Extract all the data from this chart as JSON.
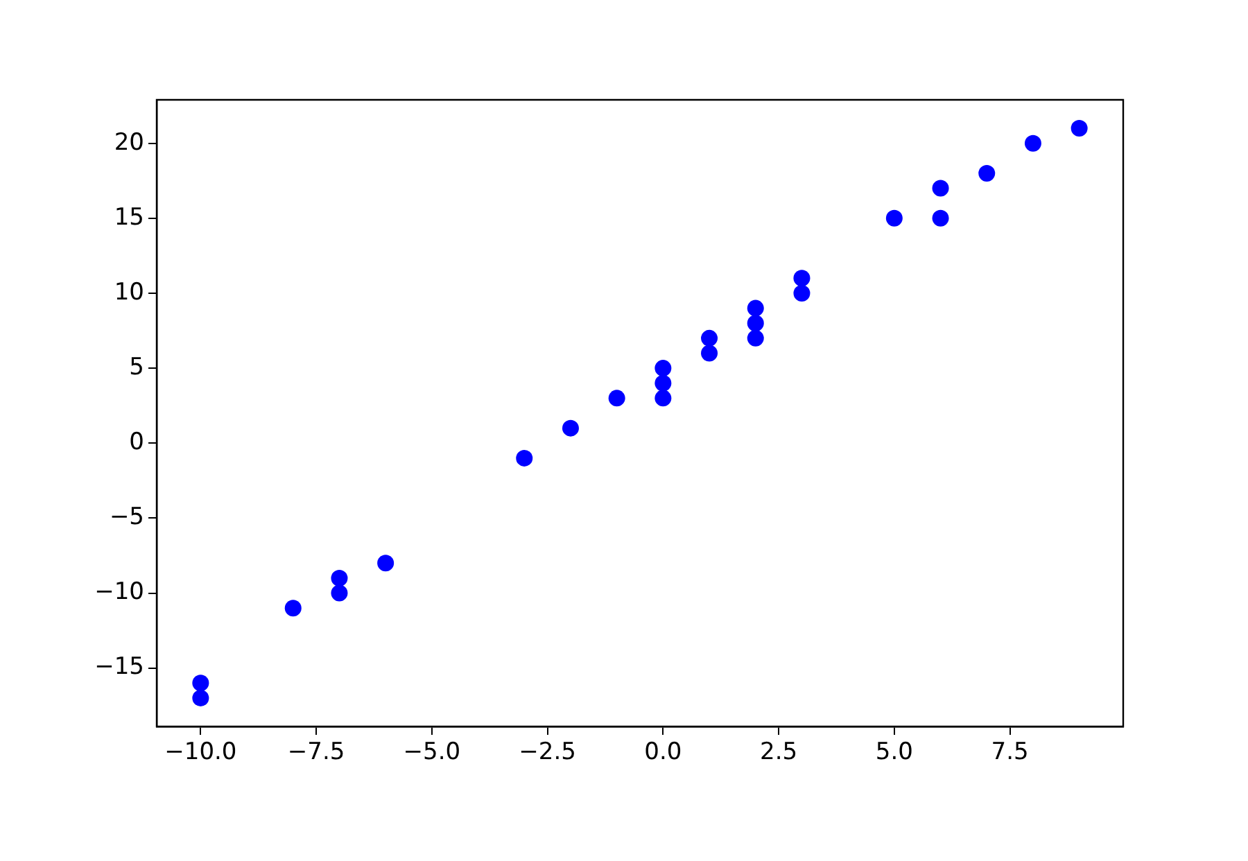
{
  "chart_data": {
    "type": "scatter",
    "marker": "circle",
    "grid": false,
    "legend": false,
    "xlim": [
      -10.95,
      9.95
    ],
    "ylim": [
      -18.9,
      22.9
    ],
    "xticks": [
      {
        "value": -10,
        "label": "−10.0"
      },
      {
        "value": -7.5,
        "label": "−7.5"
      },
      {
        "value": -5,
        "label": "−5.0"
      },
      {
        "value": -2.5,
        "label": "−2.5"
      },
      {
        "value": 0,
        "label": "0.0"
      },
      {
        "value": 2.5,
        "label": "2.5"
      },
      {
        "value": 5,
        "label": "5.0"
      },
      {
        "value": 7.5,
        "label": "7.5"
      }
    ],
    "yticks": [
      {
        "value": -15,
        "label": "−15"
      },
      {
        "value": -10,
        "label": "−10"
      },
      {
        "value": -5,
        "label": "−5"
      },
      0,
      5,
      10,
      15,
      20
    ],
    "series": [
      {
        "color": "#0000ff",
        "x": [
          -10,
          -10,
          -8,
          -7,
          -7,
          -6,
          -3,
          -2,
          -1,
          0,
          0,
          0,
          1,
          1,
          2,
          2,
          2,
          3,
          3,
          5,
          6,
          6,
          7,
          8,
          9
        ],
        "values": [
          -16,
          -17,
          -11,
          -9,
          -10,
          -8,
          -1,
          1,
          3,
          5,
          4,
          3,
          7,
          6,
          9,
          8,
          7,
          11,
          10,
          15,
          17,
          15,
          18,
          20,
          21
        ]
      }
    ]
  }
}
